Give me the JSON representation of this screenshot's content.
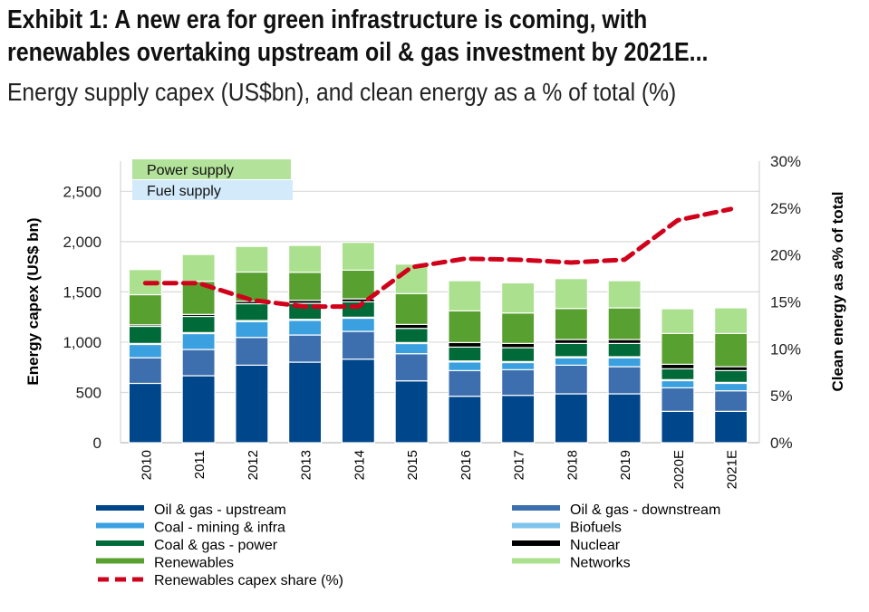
{
  "header": {
    "title_line1": "Exhibit 1: A new era for green infrastructure is coming, with",
    "title_line2": "renewables overtaking upstream oil & gas investment by 2021E...",
    "subtitle": "Energy supply capex (US$bn), and clean energy as a % of total (%)"
  },
  "chart_data": {
    "type": "bar",
    "stacked": true,
    "categories": [
      "2010",
      "2011",
      "2012",
      "2013",
      "2014",
      "2015",
      "2016",
      "2017",
      "2018",
      "2019",
      "2020E",
      "2021E"
    ],
    "ylabel": "Energy capex (US$ bn)",
    "y2label": "Clean energy as a% of total",
    "ylim": [
      0,
      2800
    ],
    "y2lim": [
      0,
      30
    ],
    "yticks": [
      "0",
      "500",
      "1,000",
      "1,500",
      "2,000",
      "2,500"
    ],
    "y2ticks": [
      "0%",
      "5%",
      "10%",
      "15%",
      "20%",
      "25%",
      "30%"
    ],
    "grid": true,
    "legend_position": "bottom",
    "group_labels": [
      {
        "text": "Power supply",
        "color": "#b3e29a"
      },
      {
        "text": "Fuel supply",
        "color": "#d3eafb"
      }
    ],
    "series": [
      {
        "name": "Oil & gas - upstream",
        "color": "#00468b",
        "values": [
          590,
          666,
          771,
          801,
          831,
          615,
          462,
          471,
          486,
          486,
          312,
          312
        ]
      },
      {
        "name": "Oil & gas - downstream",
        "color": "#3d6fae",
        "values": [
          255,
          261,
          276,
          270,
          276,
          270,
          255,
          255,
          285,
          270,
          234,
          204
        ]
      },
      {
        "name": "Coal - mining & infra",
        "color": "#3aa0e0",
        "values": [
          132,
          158,
          158,
          146,
          131,
          101,
          86,
          71,
          74,
          89,
          71,
          74
        ]
      },
      {
        "name": "Biofuels",
        "color": "#80c4ee",
        "values": [
          10,
          10,
          10,
          10,
          10,
          10,
          10,
          10,
          10,
          10,
          10,
          10
        ]
      },
      {
        "name": "Coal & gas - power",
        "color": "#006b38",
        "values": [
          170,
          161,
          167,
          159,
          153,
          141,
          138,
          138,
          132,
          132,
          108,
          117
        ]
      },
      {
        "name": "Nuclear",
        "color": "#000000",
        "values": [
          15,
          20,
          24,
          30,
          30,
          39,
          45,
          42,
          39,
          39,
          45,
          39
        ]
      },
      {
        "name": "Renewables",
        "color": "#58a02f",
        "values": [
          300,
          329,
          291,
          279,
          285,
          306,
          315,
          303,
          309,
          315,
          306,
          330
        ]
      },
      {
        "name": "Networks",
        "color": "#abe08e",
        "values": [
          250,
          267,
          255,
          267,
          276,
          294,
          300,
          300,
          297,
          270,
          246,
          255
        ]
      }
    ],
    "line_series": {
      "name": "Renewables capex share (%)",
      "color": "#d0021b",
      "axis": "right",
      "values": [
        17.0,
        17.0,
        15.2,
        14.5,
        14.5,
        18.7,
        19.6,
        19.5,
        19.2,
        19.5,
        23.7,
        24.9
      ]
    }
  }
}
